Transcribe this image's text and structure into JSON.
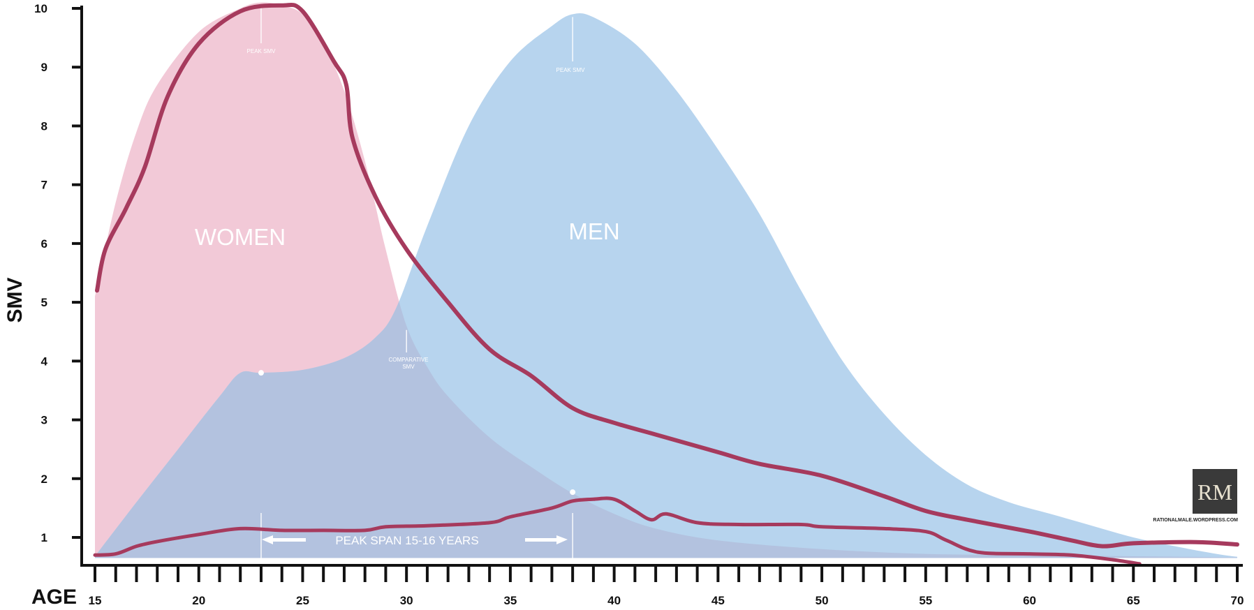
{
  "chart_data": {
    "type": "area",
    "xlabel": "AGE",
    "ylabel": "SMV",
    "xlim": [
      15,
      70
    ],
    "ylim": [
      0.65,
      10
    ],
    "x_ticks": [
      15,
      20,
      25,
      30,
      35,
      40,
      45,
      50,
      55,
      60,
      65,
      70
    ],
    "y_ticks": [
      1,
      2,
      3,
      4,
      5,
      6,
      7,
      8,
      9,
      10
    ],
    "colors": {
      "women": "#f2c9d7",
      "men": "#b7d4ee",
      "overlap": "#b3c2df",
      "hand_drawn": "#a63a5d",
      "axis": "#111111"
    },
    "series": [
      {
        "name": "WOMEN",
        "points": [
          [
            15,
            5.1
          ],
          [
            16,
            6.7
          ],
          [
            17,
            7.9
          ],
          [
            18,
            8.7
          ],
          [
            20,
            9.6
          ],
          [
            22,
            10.0
          ],
          [
            23,
            10.1
          ],
          [
            24,
            10.05
          ],
          [
            25,
            9.9
          ],
          [
            26,
            9.4
          ],
          [
            27,
            8.6
          ],
          [
            28,
            7.4
          ],
          [
            29,
            5.9
          ],
          [
            30,
            4.6
          ],
          [
            31,
            3.9
          ],
          [
            32,
            3.4
          ],
          [
            34,
            2.7
          ],
          [
            36,
            2.2
          ],
          [
            38,
            1.75
          ],
          [
            40,
            1.4
          ],
          [
            42,
            1.15
          ],
          [
            45,
            0.95
          ],
          [
            50,
            0.8
          ],
          [
            55,
            0.72
          ],
          [
            60,
            0.7
          ],
          [
            65,
            0.68
          ],
          [
            70,
            0.66
          ]
        ]
      },
      {
        "name": "MEN",
        "points": [
          [
            15,
            0.68
          ],
          [
            17,
            1.6
          ],
          [
            19,
            2.5
          ],
          [
            21,
            3.4
          ],
          [
            22,
            3.8
          ],
          [
            23,
            3.8
          ],
          [
            25,
            3.85
          ],
          [
            27,
            4.05
          ],
          [
            28.5,
            4.4
          ],
          [
            29.5,
            4.9
          ],
          [
            31,
            6.3
          ],
          [
            33,
            8.0
          ],
          [
            35,
            9.1
          ],
          [
            37,
            9.7
          ],
          [
            38,
            9.9
          ],
          [
            39,
            9.85
          ],
          [
            41,
            9.4
          ],
          [
            43,
            8.6
          ],
          [
            45,
            7.6
          ],
          [
            47,
            6.5
          ],
          [
            49,
            5.2
          ],
          [
            51,
            4.0
          ],
          [
            53,
            3.1
          ],
          [
            55,
            2.4
          ],
          [
            57,
            1.9
          ],
          [
            59,
            1.6
          ],
          [
            61,
            1.4
          ],
          [
            63,
            1.2
          ],
          [
            65,
            1.0
          ],
          [
            67,
            0.85
          ],
          [
            69,
            0.72
          ],
          [
            70,
            0.67
          ]
        ]
      },
      {
        "name": "Women (hand-drawn)",
        "points": [
          [
            15.1,
            5.2
          ],
          [
            15.5,
            5.9
          ],
          [
            16.5,
            6.6
          ],
          [
            17.4,
            7.3
          ],
          [
            18.5,
            8.5
          ],
          [
            20,
            9.4
          ],
          [
            22,
            9.95
          ],
          [
            24,
            10.05
          ],
          [
            25,
            9.95
          ],
          [
            26.5,
            9.1
          ],
          [
            27.1,
            8.7
          ],
          [
            27.4,
            7.8
          ],
          [
            28.5,
            6.8
          ],
          [
            30,
            5.9
          ],
          [
            32,
            5.0
          ],
          [
            34,
            4.2
          ],
          [
            36,
            3.75
          ],
          [
            38,
            3.2
          ],
          [
            40,
            2.95
          ],
          [
            42,
            2.75
          ],
          [
            45,
            2.45
          ],
          [
            47,
            2.25
          ],
          [
            50,
            2.05
          ],
          [
            53,
            1.7
          ],
          [
            55,
            1.45
          ],
          [
            57,
            1.3
          ],
          [
            60,
            1.1
          ],
          [
            62,
            0.95
          ],
          [
            63.5,
            0.85
          ],
          [
            65,
            0.9
          ],
          [
            68,
            0.92
          ],
          [
            70,
            0.88
          ]
        ]
      },
      {
        "name": "Men (hand-drawn)",
        "points": [
          [
            15,
            0.7
          ],
          [
            16,
            0.72
          ],
          [
            17,
            0.85
          ],
          [
            18,
            0.93
          ],
          [
            20,
            1.05
          ],
          [
            22,
            1.15
          ],
          [
            24,
            1.12
          ],
          [
            26,
            1.12
          ],
          [
            28,
            1.12
          ],
          [
            29,
            1.18
          ],
          [
            31,
            1.2
          ],
          [
            34,
            1.25
          ],
          [
            35,
            1.35
          ],
          [
            37,
            1.5
          ],
          [
            38,
            1.62
          ],
          [
            39,
            1.65
          ],
          [
            40,
            1.65
          ],
          [
            41,
            1.45
          ],
          [
            41.8,
            1.3
          ],
          [
            42.5,
            1.4
          ],
          [
            44,
            1.25
          ],
          [
            46,
            1.22
          ],
          [
            49,
            1.22
          ],
          [
            50,
            1.18
          ],
          [
            53,
            1.15
          ],
          [
            55,
            1.1
          ],
          [
            56,
            0.95
          ],
          [
            57.5,
            0.75
          ],
          [
            60,
            0.72
          ],
          [
            62,
            0.7
          ],
          [
            64,
            0.62
          ],
          [
            65.3,
            0.55
          ]
        ]
      }
    ],
    "annotations": {
      "women_label": "WOMEN",
      "men_label": "MEN",
      "women_peak": "PEAK SMV",
      "men_peak": "PEAK SMV",
      "comparative": [
        "COMPARATIVE",
        "SMV"
      ],
      "peak_span": "PEAK SPAN 15-16 YEARS",
      "women_peak_age": 23,
      "men_peak_age": 38,
      "comparative_age": 30,
      "women_marker": [
        23,
        3.8
      ],
      "men_marker": [
        38,
        1.77
      ]
    },
    "watermark": {
      "logo": "RM",
      "url": "RATIONALMALE.WORDPRESS.COM"
    }
  }
}
